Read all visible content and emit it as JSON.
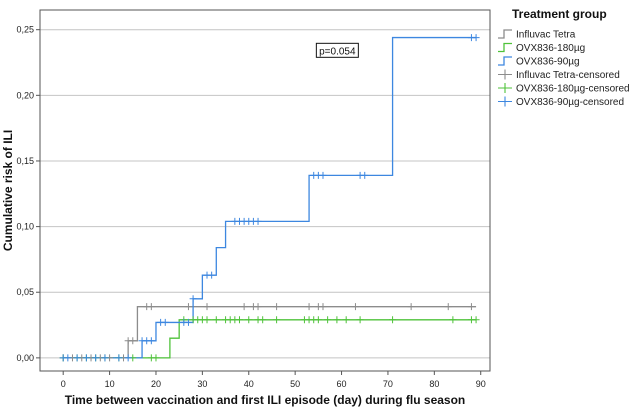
{
  "chart_data": {
    "type": "line",
    "subtype": "step-kaplan-meier",
    "xlabel": "Time between vaccination and first ILI episode (day) during flu season",
    "ylabel": "Cumulative risk of ILI",
    "xlim": [
      -5,
      92
    ],
    "ylim": [
      -0.01,
      0.265
    ],
    "xticks": [
      0,
      10,
      20,
      30,
      40,
      50,
      60,
      70,
      80,
      90
    ],
    "yticks": [
      0.0,
      0.05,
      0.1,
      0.15,
      0.2,
      0.25
    ],
    "ytick_labels": [
      "0,00",
      "0,05",
      "0,10",
      "0,15",
      "0,20",
      "0,25"
    ],
    "grid": "horizontal",
    "legend_title": "Treatment group",
    "legend_position": "right",
    "annotation": "p=0.054",
    "series": [
      {
        "name": "Influvac Tetra",
        "color": "#8c8c8c",
        "steps": [
          [
            0,
            0.0
          ],
          [
            14,
            0.013
          ],
          [
            16,
            0.039
          ],
          [
            89,
            0.039
          ]
        ],
        "censored_name": "Influvac Tetra-censored",
        "censored": [
          [
            0,
            0
          ],
          [
            2,
            0
          ],
          [
            4,
            0
          ],
          [
            6,
            0
          ],
          [
            8,
            0
          ],
          [
            10,
            0
          ],
          [
            13,
            0
          ],
          [
            14,
            0.013
          ],
          [
            15,
            0.013
          ],
          [
            18,
            0.039
          ],
          [
            19,
            0.039
          ],
          [
            27,
            0.039
          ],
          [
            31,
            0.039
          ],
          [
            39,
            0.039
          ],
          [
            41,
            0.039
          ],
          [
            42,
            0.039
          ],
          [
            46,
            0.039
          ],
          [
            53,
            0.039
          ],
          [
            55,
            0.039
          ],
          [
            56,
            0.039
          ],
          [
            63,
            0.039
          ],
          [
            75,
            0.039
          ],
          [
            83,
            0.039
          ],
          [
            88,
            0.039
          ]
        ]
      },
      {
        "name": "OVX836-180µg",
        "color": "#4fc23a",
        "steps": [
          [
            0,
            0.0
          ],
          [
            23,
            0.015
          ],
          [
            25,
            0.029
          ],
          [
            89,
            0.029
          ]
        ],
        "censored_name": "OVX836-180µg-censored",
        "censored": [
          [
            0,
            0
          ],
          [
            3,
            0
          ],
          [
            5,
            0
          ],
          [
            7,
            0
          ],
          [
            9,
            0
          ],
          [
            12,
            0
          ],
          [
            15,
            0
          ],
          [
            19,
            0
          ],
          [
            20,
            0
          ],
          [
            26,
            0.029
          ],
          [
            28,
            0.029
          ],
          [
            29,
            0.029
          ],
          [
            30,
            0.029
          ],
          [
            31,
            0.029
          ],
          [
            33,
            0.029
          ],
          [
            35,
            0.029
          ],
          [
            36,
            0.029
          ],
          [
            37,
            0.029
          ],
          [
            38,
            0.029
          ],
          [
            40,
            0.029
          ],
          [
            42,
            0.029
          ],
          [
            43,
            0.029
          ],
          [
            46,
            0.029
          ],
          [
            52,
            0.029
          ],
          [
            53,
            0.029
          ],
          [
            54,
            0.029
          ],
          [
            55,
            0.029
          ],
          [
            57,
            0.029
          ],
          [
            59,
            0.029
          ],
          [
            61,
            0.029
          ],
          [
            64,
            0.029
          ],
          [
            71,
            0.029
          ],
          [
            84,
            0.029
          ],
          [
            88,
            0.029
          ],
          [
            89,
            0.029
          ]
        ]
      },
      {
        "name": "OVX836-90µg",
        "color": "#3d87e0",
        "steps": [
          [
            0,
            0.0
          ],
          [
            17,
            0.013
          ],
          [
            20,
            0.027
          ],
          [
            28,
            0.045
          ],
          [
            30,
            0.063
          ],
          [
            33,
            0.084
          ],
          [
            35,
            0.104
          ],
          [
            53,
            0.139
          ],
          [
            71,
            0.244
          ],
          [
            89,
            0.244
          ]
        ],
        "censored_name": "OVX836-90µg-censored",
        "censored": [
          [
            0,
            0
          ],
          [
            1,
            0
          ],
          [
            3,
            0
          ],
          [
            5,
            0
          ],
          [
            7,
            0
          ],
          [
            9,
            0
          ],
          [
            12,
            0
          ],
          [
            14,
            0
          ],
          [
            17,
            0.013
          ],
          [
            18,
            0.013
          ],
          [
            19,
            0.013
          ],
          [
            21,
            0.027
          ],
          [
            22,
            0.027
          ],
          [
            26,
            0.027
          ],
          [
            27,
            0.027
          ],
          [
            28,
            0.045
          ],
          [
            31,
            0.063
          ],
          [
            32,
            0.063
          ],
          [
            37,
            0.104
          ],
          [
            38,
            0.104
          ],
          [
            39,
            0.104
          ],
          [
            40,
            0.104
          ],
          [
            41,
            0.104
          ],
          [
            42,
            0.104
          ],
          [
            54,
            0.139
          ],
          [
            55,
            0.139
          ],
          [
            56,
            0.139
          ],
          [
            64,
            0.139
          ],
          [
            65,
            0.139
          ],
          [
            88,
            0.244
          ],
          [
            89,
            0.244
          ]
        ]
      }
    ]
  }
}
